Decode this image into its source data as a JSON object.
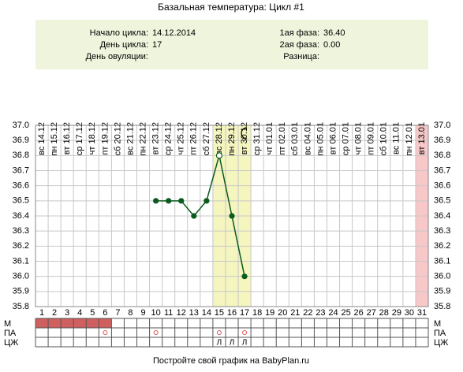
{
  "chart_data": {
    "type": "line",
    "title": "Базальная температура: Цикл #1",
    "info": {
      "cycle_start_label": "Начало цикла:",
      "cycle_start": "14.12.2014",
      "cycle_day_label": "День цикла:",
      "cycle_day": "17",
      "ovulation_day_label": "День овуляции:",
      "phase1_label": "1ая фаза:",
      "phase1": "36.40",
      "phase2_label": "2ая фаза:",
      "phase2": "0.00",
      "difference_label": "Разница:"
    },
    "categories": [
      "вс 14.12",
      "пн 15.12",
      "вт 16.12",
      "ср 17.12",
      "чт 18.12",
      "пт 19.12",
      "сб 20.12",
      "вс 21.12",
      "пн 22.12",
      "вт 23.12",
      "ср 24.12",
      "чт 25.12",
      "пт 26.12",
      "сб 27.12",
      "вс 28.12",
      "пн 29.12",
      "вт 30.12",
      "ср 31.12",
      "чт 01.01",
      "пт 02.01",
      "сб 03.01",
      "вс 04.01",
      "пн 05.01",
      "вт 06.01",
      "ср 07.01",
      "чт 08.01",
      "пт 09.01",
      "сб 10.01",
      "вс 11.01",
      "пн 12.01",
      "вт 13.01"
    ],
    "day_numbers": [
      1,
      2,
      3,
      4,
      5,
      6,
      7,
      8,
      9,
      10,
      11,
      12,
      13,
      14,
      15,
      16,
      17,
      18,
      19,
      20,
      21,
      22,
      23,
      24,
      25,
      26,
      27,
      28,
      29,
      30,
      31
    ],
    "series": [
      {
        "color": "#0b5a1e",
        "values": [
          null,
          null,
          null,
          null,
          null,
          null,
          null,
          null,
          null,
          36.5,
          36.5,
          36.5,
          36.4,
          36.5,
          36.8,
          36.4,
          36.0,
          null,
          null,
          null,
          null,
          null,
          null,
          null,
          null,
          null,
          null,
          null,
          null,
          null,
          null
        ]
      }
    ],
    "hollow_point_days": [
      15
    ],
    "ylim": [
      35.8,
      37.0
    ],
    "yticks": [
      35.8,
      35.9,
      {
        "value": 36,
        "label": "36.0"
      },
      36.1,
      36.2,
      36.3,
      36.4,
      36.5,
      36.6,
      36.7,
      36.8,
      36.9,
      {
        "value": 37,
        "label": "37.0"
      }
    ],
    "grid": true,
    "highlight_days": [
      15,
      16,
      17
    ],
    "highlight_color": "#f5f5c0",
    "pink_days": [
      31
    ],
    "pink_color": "#f8c8c8",
    "moon_day": 17,
    "rows": [
      {
        "label": "М",
        "days": [
          1,
          2,
          3,
          4,
          5,
          6
        ],
        "mark": "fill",
        "color": "#d06060"
      },
      {
        "label": "ПА",
        "days": [
          6,
          10,
          15,
          17
        ],
        "mark": "circle",
        "color": "#e05050"
      },
      {
        "label": "ЦЖ",
        "days": [
          15,
          16,
          17
        ],
        "mark": "text",
        "text": "Л"
      }
    ],
    "footer": "Постройте свой график на BabyPlan.ru"
  }
}
